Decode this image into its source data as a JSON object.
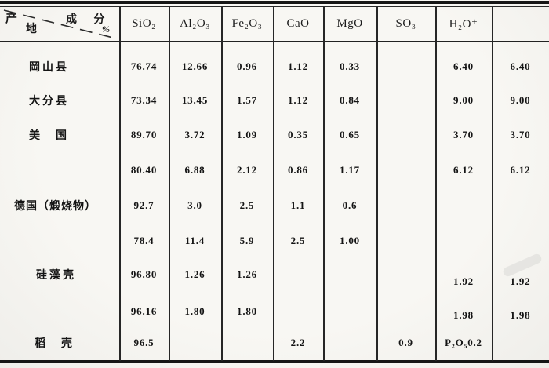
{
  "document": {
    "kind": "scanned composition table",
    "background": "#f6f5f1",
    "ink": "#1a1a1a",
    "corner": {
      "row_axis_chars": [
        "产",
        "地"
      ],
      "col_axis_label": "成 分",
      "unit": "%"
    },
    "columns": [
      "SiO₂",
      "Al₂O₃",
      "Fe₂O₃",
      "CaO",
      "MgO",
      "SO₃",
      "H₂O⁺",
      ""
    ],
    "rows": [
      {
        "label": "岡山县",
        "values": [
          "76.74",
          "12.66",
          "0.96",
          "1.12",
          "0.33",
          "",
          "6.40",
          "6.40"
        ]
      },
      {
        "label": "大分县",
        "values": [
          "73.34",
          "13.45",
          "1.57",
          "1.12",
          "0.84",
          "",
          "9.00",
          "9.00"
        ]
      },
      {
        "label": "美　国",
        "values": [
          "89.70",
          "3.72",
          "1.09",
          "0.35",
          "0.65",
          "",
          "3.70",
          "3.70"
        ]
      },
      {
        "label": "",
        "values": [
          "80.40",
          "6.88",
          "2.12",
          "0.86",
          "1.17",
          "",
          "6.12",
          "6.12"
        ]
      },
      {
        "label": "德国（煅烧物）",
        "values": [
          "92.7",
          "3.0",
          "2.5",
          "1.1",
          "0.6",
          "",
          "",
          ""
        ]
      },
      {
        "label": "",
        "values": [
          "78.4",
          "11.4",
          "5.9",
          "2.5",
          "1.00",
          "",
          "",
          ""
        ]
      },
      {
        "label": "硅藻壳",
        "values": [
          "96.80",
          "1.26",
          "1.26",
          "",
          "",
          "",
          "1.92",
          "1.92"
        ]
      },
      {
        "label": "",
        "values": [
          "96.16",
          "1.80",
          "1.80",
          "",
          "",
          "",
          "1.98",
          "1.98"
        ]
      },
      {
        "label": "稻　壳",
        "values": [
          "96.5",
          "",
          "",
          "2.2",
          "",
          "0.9",
          "P₂O₅0.2",
          ""
        ]
      }
    ]
  }
}
